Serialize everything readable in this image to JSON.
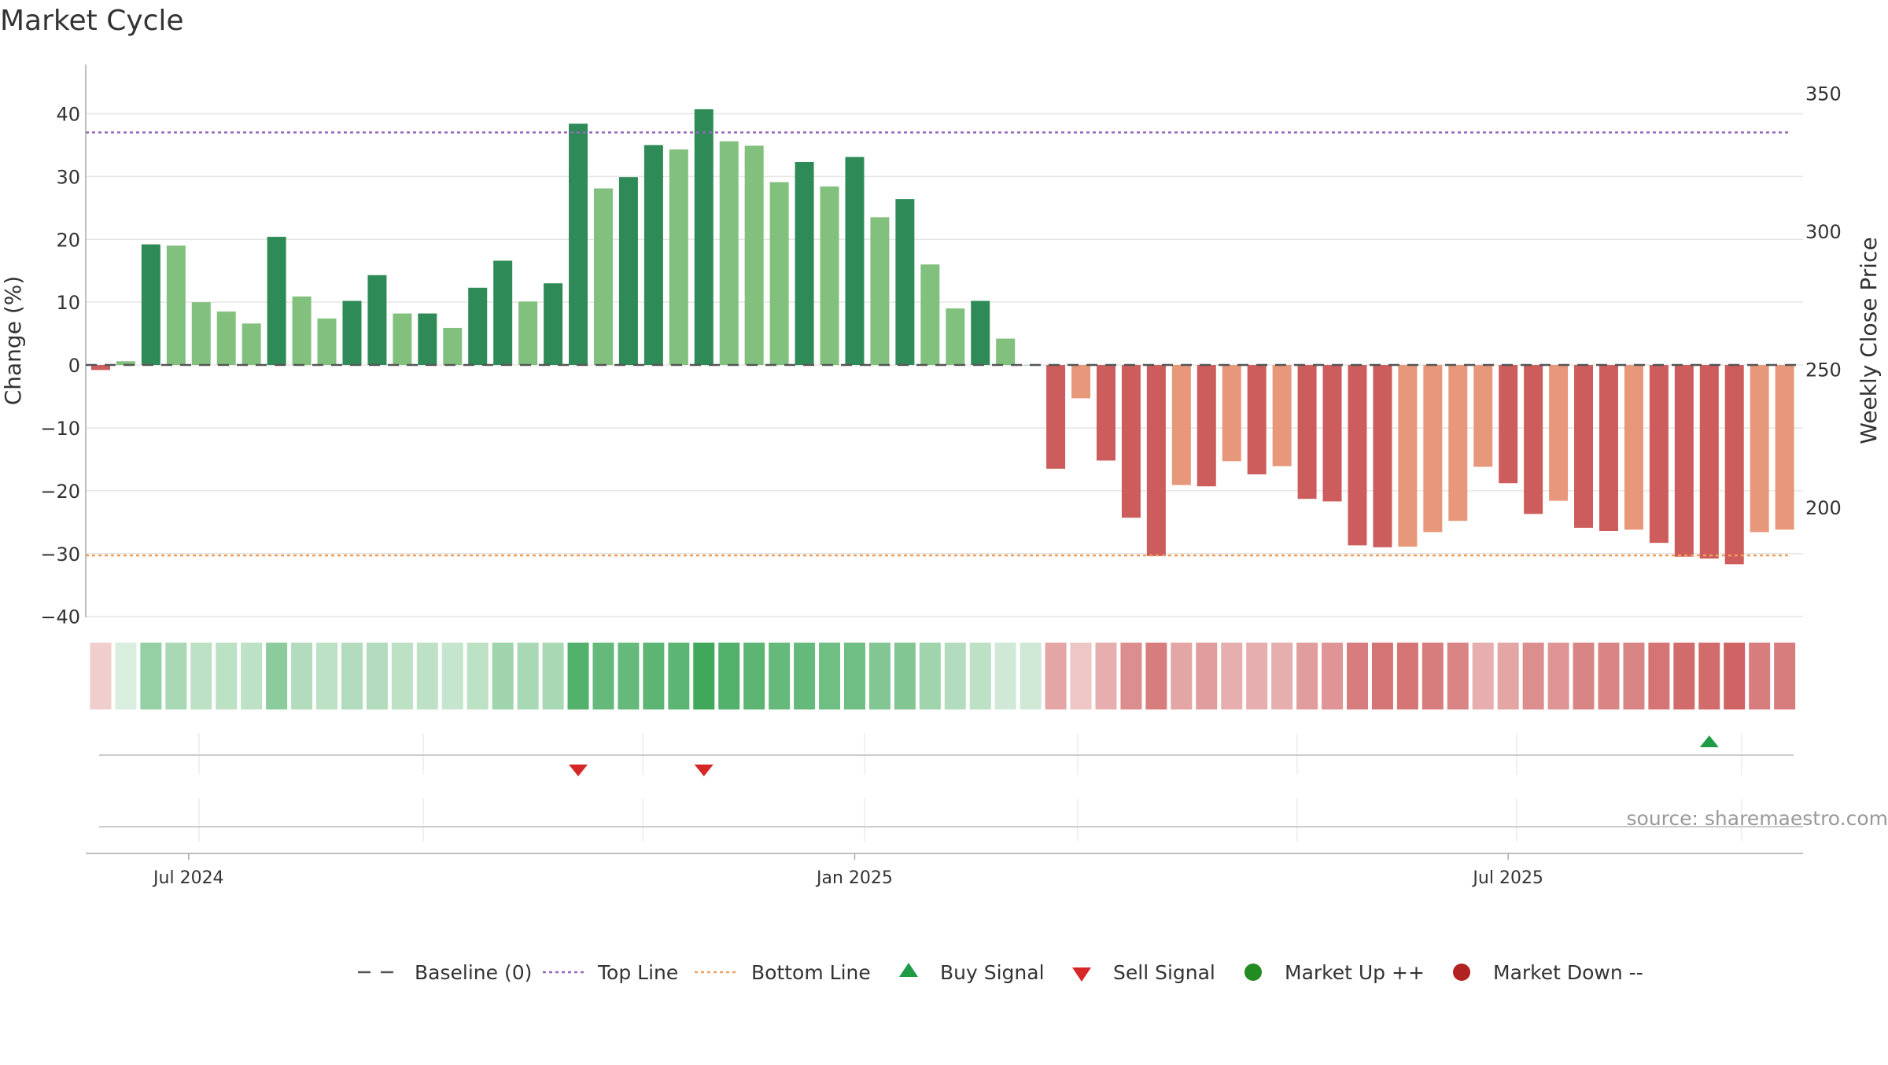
{
  "title": "Market Cycle",
  "source": "source: sharemaestro.com",
  "chart_data": {
    "type": "bar",
    "ylabel": "Change (%)",
    "y2label": "Weekly Close Price",
    "ylim": [
      -44,
      44
    ],
    "yticks": [
      40,
      30,
      20,
      10,
      0,
      -10,
      -20,
      -30,
      -40
    ],
    "y2lim": [
      168,
      362
    ],
    "y2ticks": [
      350,
      300,
      250,
      200
    ],
    "ytick_labels": [
      "40",
      "30",
      "20",
      "10",
      "0",
      "−10",
      "−20",
      "−30",
      "−40"
    ],
    "x_tick_labels": [
      "Jul 2024",
      "Jan 2025",
      "Jul 2025"
    ],
    "x_tick_weeks": [
      4,
      30.5,
      56.5
    ],
    "top_line": 37,
    "bottom_line": -30.3,
    "week_count": 68,
    "values": [
      -0.8,
      0.6,
      19.2,
      19.0,
      10.0,
      8.5,
      6.6,
      20.4,
      10.9,
      7.4,
      10.2,
      14.3,
      8.2,
      8.2,
      5.9,
      12.3,
      16.6,
      10.1,
      13.0,
      38.4,
      28.1,
      29.9,
      35.0,
      34.3,
      40.7,
      35.6,
      34.9,
      29.1,
      32.3,
      28.4,
      33.1,
      23.5,
      26.4,
      16.0,
      9.0,
      10.2,
      4.2,
      0.0,
      -16.5,
      -5.3,
      -15.2,
      -24.3,
      -30.4,
      -19.1,
      -19.3,
      -15.3,
      -17.4,
      -16.1,
      -21.3,
      -21.7,
      -28.7,
      -29.0,
      -28.9,
      -26.6,
      -24.8,
      -16.2,
      -18.8,
      -23.7,
      -21.6,
      -25.9,
      -26.4,
      -26.2,
      -28.3,
      -30.5,
      -30.8,
      -31.7,
      -26.6,
      -26.2
    ],
    "bar_shades": [
      "d",
      "l",
      "d",
      "l",
      "l",
      "l",
      "l",
      "d",
      "l",
      "l",
      "d",
      "d",
      "l",
      "d",
      "l",
      "d",
      "d",
      "l",
      "d",
      "d",
      "l",
      "d",
      "d",
      "l",
      "d",
      "l",
      "l",
      "l",
      "d",
      "l",
      "d",
      "l",
      "d",
      "l",
      "l",
      "d",
      "l",
      "l",
      "d",
      "l",
      "d",
      "d",
      "d",
      "l",
      "d",
      "l",
      "d",
      "l",
      "d",
      "d",
      "d",
      "d",
      "l",
      "l",
      "l",
      "l",
      "d",
      "d",
      "l",
      "d",
      "d",
      "l",
      "d",
      "d",
      "d",
      "d",
      "l",
      "l"
    ],
    "strip_intensity": [
      0.3,
      0.2,
      0.55,
      0.45,
      0.35,
      0.35,
      0.35,
      0.6,
      0.4,
      0.35,
      0.4,
      0.4,
      0.35,
      0.35,
      0.3,
      0.35,
      0.5,
      0.45,
      0.45,
      0.9,
      0.8,
      0.8,
      0.85,
      0.85,
      1.0,
      0.9,
      0.85,
      0.8,
      0.8,
      0.75,
      0.75,
      0.65,
      0.65,
      0.5,
      0.4,
      0.35,
      0.25,
      0.25,
      0.55,
      0.35,
      0.5,
      0.7,
      0.8,
      0.55,
      0.6,
      0.5,
      0.5,
      0.5,
      0.6,
      0.65,
      0.8,
      0.85,
      0.85,
      0.8,
      0.75,
      0.5,
      0.55,
      0.7,
      0.65,
      0.75,
      0.75,
      0.75,
      0.85,
      0.9,
      0.9,
      0.95,
      0.8,
      0.8
    ],
    "sell_signals": [
      19.5,
      24.5
    ],
    "buy_signals": [
      64.5
    ],
    "colors": {
      "up_dark": "#2e8b57",
      "up_light": "#82c07e",
      "down_dark": "#cd5c5c",
      "down_light": "#e8987a",
      "top_line": "#9467bd",
      "bottom_line": "#f0a05a",
      "baseline": "#555555",
      "buy": "#1e9b45",
      "sell": "#d62728",
      "market_up": "#228b22",
      "market_down": "#b22222"
    },
    "legend_position": "bottom-center",
    "legend": [
      {
        "label": "Baseline (0)",
        "icon": "dash-line-icon"
      },
      {
        "label": "Top Line",
        "icon": "dotted-purple-line-icon"
      },
      {
        "label": "Bottom Line",
        "icon": "dotted-orange-line-icon"
      },
      {
        "label": "Buy Signal",
        "icon": "triangle-up-icon"
      },
      {
        "label": "Sell Signal",
        "icon": "triangle-down-icon"
      },
      {
        "label": "Market Up ++",
        "icon": "green-circle-icon"
      },
      {
        "label": "Market Down --",
        "icon": "red-circle-icon"
      }
    ]
  }
}
